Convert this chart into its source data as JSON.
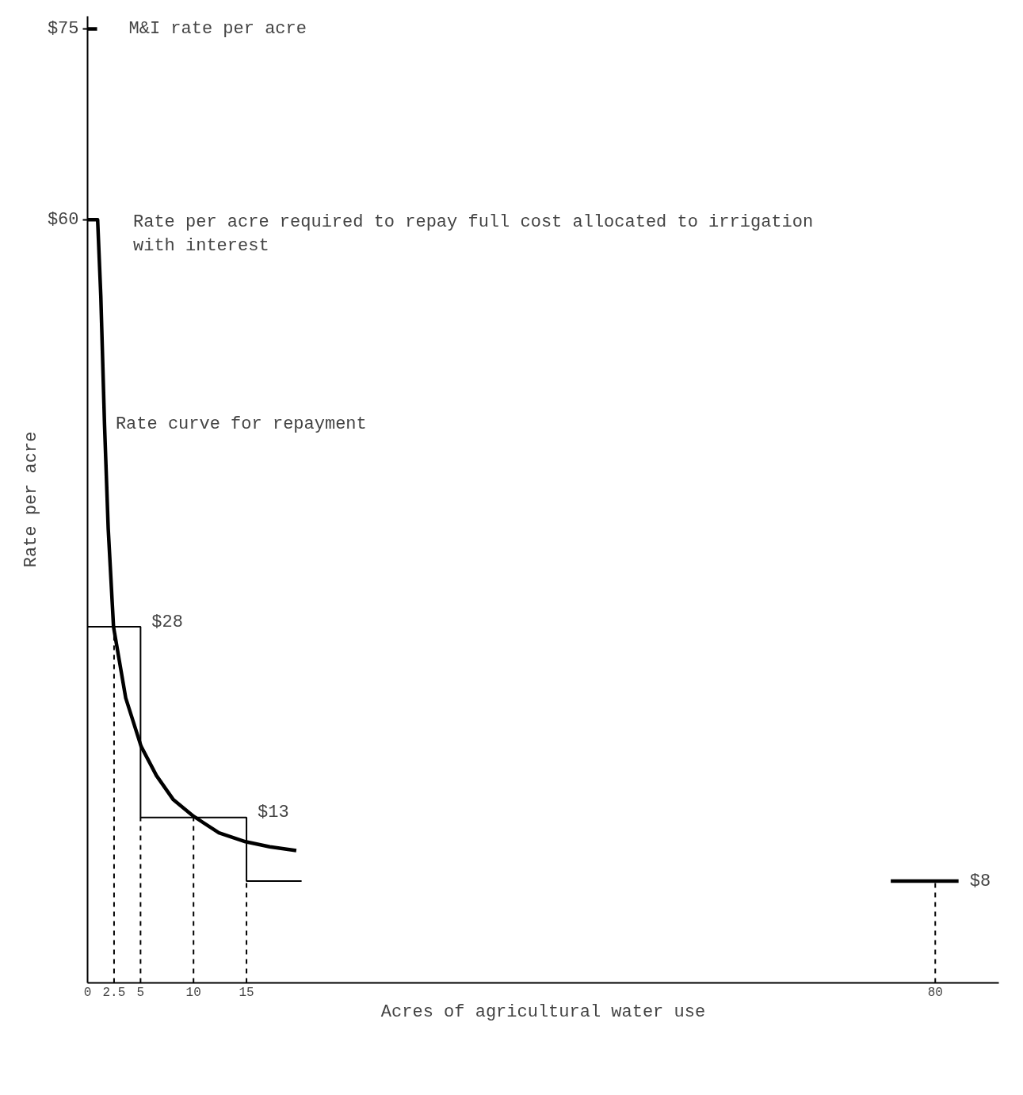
{
  "chart_data": [
    {
      "type": "line",
      "xlabel": "Acres of agricultural water use",
      "ylabel": "Rate per acre",
      "xlim": [
        0,
        86
      ],
      "ylim": [
        0,
        76
      ],
      "xticks": [
        0,
        2.5,
        5,
        10,
        15,
        80
      ],
      "yticks": [
        {
          "value": 60,
          "label": "$60"
        },
        {
          "value": 75,
          "label": "$75"
        }
      ],
      "series": [
        {
          "name": "M&I rate per acre",
          "color": "#000000",
          "line_style": "solid",
          "x": [
            0,
            0.9
          ],
          "values": [
            75,
            75
          ]
        },
        {
          "color": "#000000",
          "line_style": "solid",
          "x": [
            0,
            0.95,
            1.25,
            1.6,
            1.95,
            2.45,
            3.6,
            5.05,
            6.5,
            8.1,
            10,
            12.4,
            14.9,
            17.2,
            19.7
          ],
          "values": [
            60,
            60,
            54,
            43.9,
            35.7,
            28,
            22.4,
            18.6,
            16.3,
            14.4,
            13.1,
            11.8,
            11.1,
            10.7,
            10.4
          ]
        },
        {
          "type": "step",
          "color": "#000000",
          "line_style": "solid",
          "x": [
            0,
            5,
            15,
            20.2
          ],
          "values": [
            28,
            28,
            13,
            8
          ],
          "value_labels": [
            null,
            "$28",
            "$13",
            null
          ]
        },
        {
          "color": "#000000",
          "line_style": "dashed",
          "x": [
            2.5,
            2.5
          ],
          "values": [
            0,
            28
          ]
        },
        {
          "color": "#000000",
          "line_style": "dashed",
          "x": [
            5,
            5
          ],
          "values": [
            0,
            13
          ]
        },
        {
          "color": "#000000",
          "line_style": "dashed",
          "x": [
            10,
            10
          ],
          "values": [
            0,
            13
          ]
        },
        {
          "color": "#000000",
          "line_style": "dashed",
          "x": [
            15,
            15
          ],
          "values": [
            0,
            8
          ]
        },
        {
          "color": "#000000",
          "line_style": "solid",
          "x": [
            75.8,
            82.2
          ],
          "values": [
            8,
            8
          ],
          "value_labels": [
            null,
            "$8"
          ]
        },
        {
          "color": "#000000",
          "line_style": "dashed",
          "x": [
            80,
            80
          ],
          "values": [
            0,
            8
          ]
        }
      ],
      "annotations": [
        "Rate per acre required to repay full cost allocated to irrigation\nwith interest",
        {
          "text": "Rate curve for repayment",
          "x": 1.6,
          "y": 43.9
        }
      ]
    }
  ]
}
